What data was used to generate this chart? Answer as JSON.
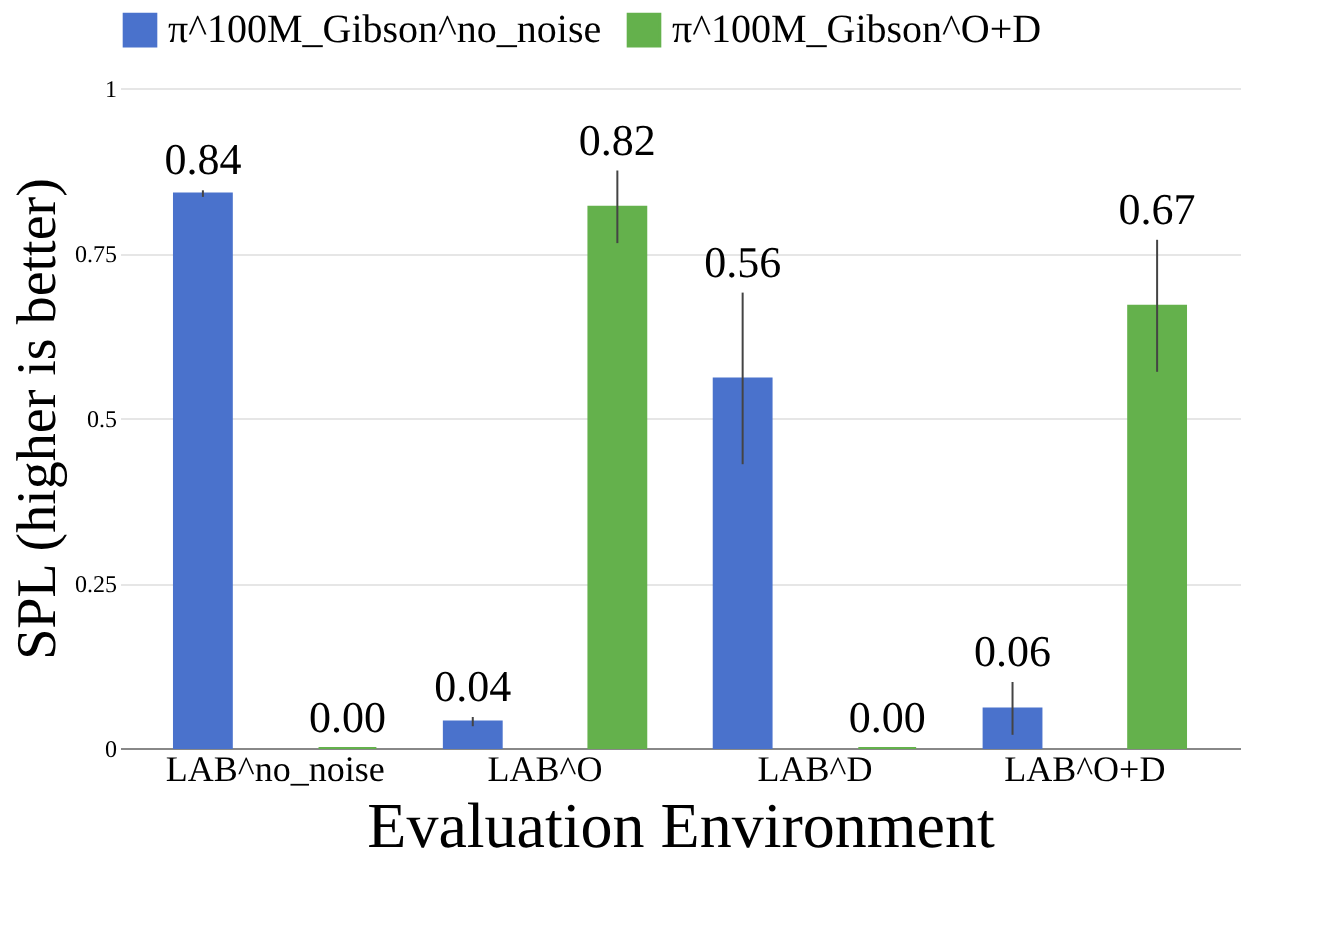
{
  "chart_data": {
    "type": "bar",
    "xlabel": "Evaluation Environment",
    "ylabel": "SPL (higher is better)",
    "categories": [
      "LAB^no_noise",
      "LAB^O",
      "LAB^D",
      "LAB^O+D"
    ],
    "series": [
      {
        "name": "π^100M_Gibson^no_noise",
        "color": "#4a72cc",
        "values": [
          0.84,
          0.04,
          0.56,
          0.06
        ],
        "errors": [
          0.005,
          0.007,
          0.13,
          0.04
        ],
        "value_labels": [
          "0.84",
          "0.04",
          "0.56",
          "0.06"
        ]
      },
      {
        "name": "π^100M_Gibson^O+D",
        "color": "#64b14c",
        "values": [
          0.0,
          0.82,
          0.0,
          0.67
        ],
        "errors": [
          null,
          0.055,
          null,
          0.1
        ],
        "value_labels": [
          "0.00",
          "0.82",
          "0.00",
          "0.67"
        ]
      }
    ],
    "ylim": [
      0,
      1
    ],
    "yticks": [
      0,
      0.25,
      0.5,
      0.75,
      1
    ],
    "grid": "y",
    "legend": "top"
  }
}
